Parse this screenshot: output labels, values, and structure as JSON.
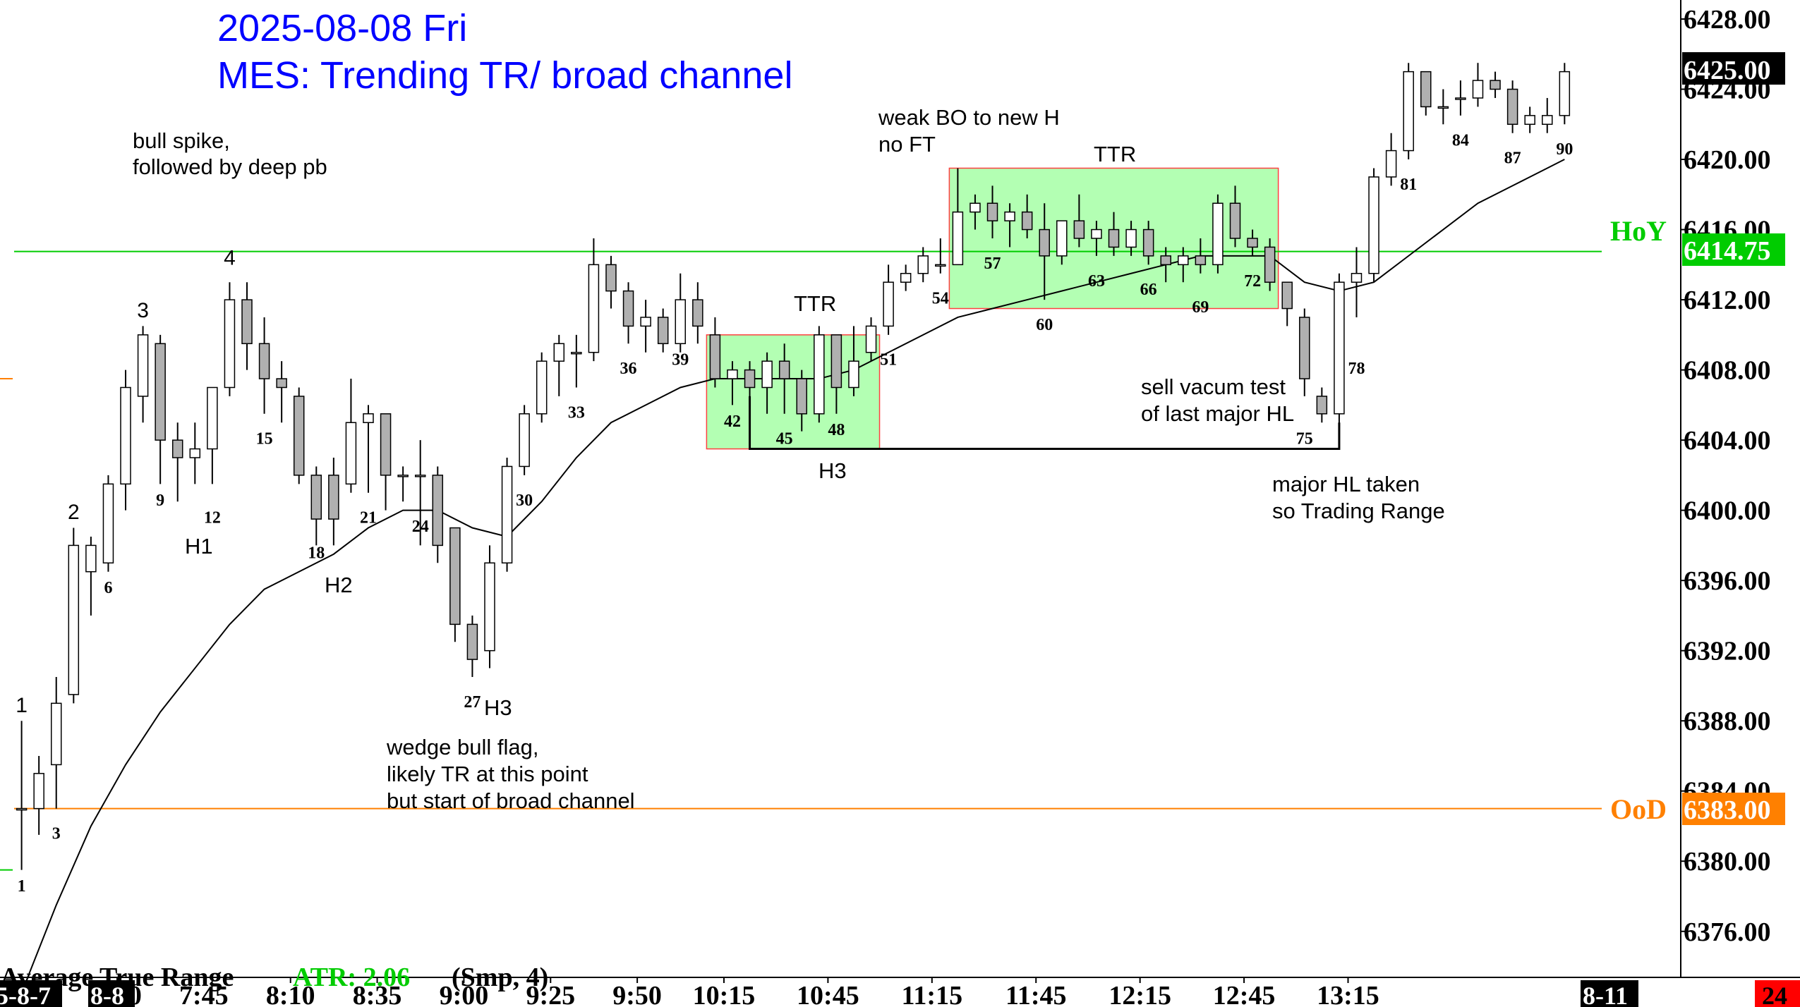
{
  "header": {
    "date": "2025-08-08 Fri",
    "subtitle": "MES: Trending TR/ broad channel"
  },
  "colors": {
    "title": "#0000ff",
    "hoy_line": "#00cc00",
    "ood_line": "#ff8000",
    "range_box_fill": "#b3ffb3",
    "range_box_border": "#ff4040",
    "bull_body": "#ffffff",
    "bear_body": "#b0b0b0",
    "ema": "#000000"
  },
  "annotations": {
    "bull_spike": "bull spike,",
    "bull_spike_2": "followed by deep pb",
    "wedge_1": "wedge bull flag,",
    "wedge_2": "likely TR at this point",
    "wedge_3": "but start of broad channel",
    "weak_bo_1": "weak BO to new H",
    "weak_bo_2": "no FT",
    "ttr_a": "TTR",
    "ttr_b": "TTR",
    "h3_a": "H3",
    "sell_vac_1": "sell vacum test",
    "sell_vac_2": "of last major HL",
    "major_hl_1": "major HL taken",
    "major_hl_2": "so Trading Range",
    "h1": "H1",
    "h2": "H2",
    "h3_b": "H3"
  },
  "price_labels": {
    "last": "6425.00",
    "hoy_tag": "HoY",
    "hoy_value": "6414.75",
    "ood_tag": "OoD",
    "ood_value": "6383.00"
  },
  "indicator": {
    "name": "Average True Range",
    "value": "ATR: 2.06",
    "params": "(Smp, 4)"
  },
  "time_axis": {
    "left_date": "5-8-7",
    "start_date": "8-8",
    "end_date": "8-11",
    "right_badge": "24"
  },
  "chart_data": {
    "type": "candlestick",
    "title": "MES: Trending TR/ broad channel",
    "ylim": [
      6373,
      6428.5
    ],
    "y_ticks": [
      6428.0,
      6424.0,
      6420.0,
      6416.0,
      6412.0,
      6408.0,
      6404.0,
      6400.0,
      6396.0,
      6392.0,
      6388.0,
      6384.0,
      6380.0,
      6376.0
    ],
    "x_ticks": [
      "7:20",
      "7:45",
      "8:10",
      "8:35",
      "9:00",
      "9:25",
      "9:50",
      "10:15",
      "10:45",
      "11:15",
      "11:45",
      "12:15",
      "12:45",
      "13:15"
    ],
    "levels": [
      {
        "name": "HoY",
        "value": 6414.75
      },
      {
        "name": "OoD",
        "value": 6383.0
      }
    ],
    "bars": [
      {
        "n": 1,
        "o": 6383.0,
        "h": 6388.0,
        "l": 6379.5,
        "c": 6383.0
      },
      {
        "n": 2,
        "o": 6383.0,
        "h": 6386.0,
        "l": 6381.5,
        "c": 6385.0
      },
      {
        "n": 3,
        "o": 6385.5,
        "h": 6390.5,
        "l": 6383.0,
        "c": 6389.0
      },
      {
        "n": 4,
        "o": 6389.5,
        "h": 6399.0,
        "l": 6389.0,
        "c": 6398.0
      },
      {
        "n": 5,
        "o": 6396.5,
        "h": 6398.5,
        "l": 6394.0,
        "c": 6398.0
      },
      {
        "n": 6,
        "o": 6397.0,
        "h": 6402.0,
        "l": 6396.5,
        "c": 6401.5
      },
      {
        "n": 7,
        "o": 6401.5,
        "h": 6408.0,
        "l": 6400.0,
        "c": 6407.0
      },
      {
        "n": 8,
        "o": 6406.5,
        "h": 6410.5,
        "l": 6405.0,
        "c": 6410.0
      },
      {
        "n": 9,
        "o": 6409.5,
        "h": 6410.0,
        "l": 6401.5,
        "c": 6404.0
      },
      {
        "n": 10,
        "o": 6404.0,
        "h": 6405.0,
        "l": 6400.5,
        "c": 6403.0
      },
      {
        "n": 11,
        "o": 6403.0,
        "h": 6405.0,
        "l": 6401.5,
        "c": 6403.5
      },
      {
        "n": 12,
        "o": 6403.5,
        "h": 6407.0,
        "l": 6401.5,
        "c": 6407.0
      },
      {
        "n": 13,
        "o": 6407.0,
        "h": 6413.0,
        "l": 6406.5,
        "c": 6412.0
      },
      {
        "n": 14,
        "o": 6412.0,
        "h": 6413.0,
        "l": 6408.0,
        "c": 6409.5
      },
      {
        "n": 15,
        "o": 6409.5,
        "h": 6411.0,
        "l": 6405.5,
        "c": 6407.5
      },
      {
        "n": 16,
        "o": 6407.5,
        "h": 6408.5,
        "l": 6405.0,
        "c": 6407.0
      },
      {
        "n": 17,
        "o": 6406.5,
        "h": 6407.0,
        "l": 6401.5,
        "c": 6402.0
      },
      {
        "n": 18,
        "o": 6402.0,
        "h": 6402.5,
        "l": 6398.0,
        "c": 6399.5
      },
      {
        "n": 19,
        "o": 6402.0,
        "h": 6403.0,
        "l": 6398.0,
        "c": 6399.5
      },
      {
        "n": 20,
        "o": 6401.5,
        "h": 6407.5,
        "l": 6401.0,
        "c": 6405.0
      },
      {
        "n": 21,
        "o": 6405.0,
        "h": 6406.0,
        "l": 6401.0,
        "c": 6405.5
      },
      {
        "n": 22,
        "o": 6405.5,
        "h": 6405.5,
        "l": 6400.0,
        "c": 6402.0
      },
      {
        "n": 23,
        "o": 6402.0,
        "h": 6402.5,
        "l": 6400.5,
        "c": 6402.0
      },
      {
        "n": 24,
        "o": 6402.0,
        "h": 6404.0,
        "l": 6398.0,
        "c": 6402.0
      },
      {
        "n": 25,
        "o": 6402.0,
        "h": 6402.5,
        "l": 6397.0,
        "c": 6398.0
      },
      {
        "n": 26,
        "o": 6399.0,
        "h": 6399.0,
        "l": 6392.5,
        "c": 6393.5
      },
      {
        "n": 27,
        "o": 6393.5,
        "h": 6394.0,
        "l": 6390.5,
        "c": 6391.5
      },
      {
        "n": 28,
        "o": 6392.0,
        "h": 6398.0,
        "l": 6391.0,
        "c": 6397.0
      },
      {
        "n": 29,
        "o": 6397.0,
        "h": 6403.0,
        "l": 6396.5,
        "c": 6402.5
      },
      {
        "n": 30,
        "o": 6402.5,
        "h": 6406.0,
        "l": 6402.0,
        "c": 6405.5
      },
      {
        "n": 31,
        "o": 6405.5,
        "h": 6409.0,
        "l": 6405.0,
        "c": 6408.5
      },
      {
        "n": 32,
        "o": 6408.5,
        "h": 6410.0,
        "l": 6406.5,
        "c": 6409.5
      },
      {
        "n": 33,
        "o": 6409.0,
        "h": 6410.0,
        "l": 6407.0,
        "c": 6409.0
      },
      {
        "n": 34,
        "o": 6409.0,
        "h": 6415.5,
        "l": 6408.5,
        "c": 6414.0
      },
      {
        "n": 35,
        "o": 6414.0,
        "h": 6414.5,
        "l": 6411.5,
        "c": 6412.5
      },
      {
        "n": 36,
        "o": 6412.5,
        "h": 6413.0,
        "l": 6409.5,
        "c": 6410.5
      },
      {
        "n": 37,
        "o": 6410.5,
        "h": 6412.0,
        "l": 6409.0,
        "c": 6411.0
      },
      {
        "n": 38,
        "o": 6411.0,
        "h": 6411.5,
        "l": 6409.0,
        "c": 6409.5
      },
      {
        "n": 39,
        "o": 6409.5,
        "h": 6413.5,
        "l": 6409.0,
        "c": 6412.0
      },
      {
        "n": 40,
        "o": 6412.0,
        "h": 6413.0,
        "l": 6409.5,
        "c": 6410.5
      },
      {
        "n": 41,
        "o": 6410.0,
        "h": 6411.0,
        "l": 6407.0,
        "c": 6407.5
      },
      {
        "n": 42,
        "o": 6407.5,
        "h": 6408.5,
        "l": 6406.0,
        "c": 6408.0
      },
      {
        "n": 43,
        "o": 6408.0,
        "h": 6408.5,
        "l": 6405.0,
        "c": 6407.0
      },
      {
        "n": 44,
        "o": 6407.0,
        "h": 6409.0,
        "l": 6405.5,
        "c": 6408.5
      },
      {
        "n": 45,
        "o": 6408.5,
        "h": 6409.5,
        "l": 6405.5,
        "c": 6407.5
      },
      {
        "n": 46,
        "o": 6407.5,
        "h": 6408.0,
        "l": 6404.5,
        "c": 6405.5
      },
      {
        "n": 47,
        "o": 6405.5,
        "h": 6410.5,
        "l": 6405.0,
        "c": 6410.0
      },
      {
        "n": 48,
        "o": 6410.0,
        "h": 6410.0,
        "l": 6405.5,
        "c": 6407.0
      },
      {
        "n": 49,
        "o": 6407.0,
        "h": 6410.5,
        "l": 6406.5,
        "c": 6408.5
      },
      {
        "n": 50,
        "o": 6409.0,
        "h": 6411.0,
        "l": 6408.5,
        "c": 6410.5
      },
      {
        "n": 51,
        "o": 6410.5,
        "h": 6414.0,
        "l": 6410.0,
        "c": 6413.0
      },
      {
        "n": 52,
        "o": 6413.0,
        "h": 6414.0,
        "l": 6412.5,
        "c": 6413.5
      },
      {
        "n": 53,
        "o": 6413.5,
        "h": 6415.0,
        "l": 6413.0,
        "c": 6414.5
      },
      {
        "n": 54,
        "o": 6414.0,
        "h": 6415.5,
        "l": 6413.5,
        "c": 6414.0
      },
      {
        "n": 55,
        "o": 6414.0,
        "h": 6419.5,
        "l": 6414.0,
        "c": 6417.0
      },
      {
        "n": 56,
        "o": 6417.0,
        "h": 6418.0,
        "l": 6416.0,
        "c": 6417.5
      },
      {
        "n": 57,
        "o": 6417.5,
        "h": 6418.5,
        "l": 6415.5,
        "c": 6416.5
      },
      {
        "n": 58,
        "o": 6416.5,
        "h": 6417.5,
        "l": 6415.0,
        "c": 6417.0
      },
      {
        "n": 59,
        "o": 6417.0,
        "h": 6418.0,
        "l": 6415.5,
        "c": 6416.0
      },
      {
        "n": 60,
        "o": 6416.0,
        "h": 6417.5,
        "l": 6412.0,
        "c": 6414.5
      },
      {
        "n": 61,
        "o": 6414.5,
        "h": 6416.5,
        "l": 6414.0,
        "c": 6416.5
      },
      {
        "n": 62,
        "o": 6416.5,
        "h": 6418.0,
        "l": 6415.0,
        "c": 6415.5
      },
      {
        "n": 63,
        "o": 6415.5,
        "h": 6416.5,
        "l": 6414.5,
        "c": 6416.0
      },
      {
        "n": 64,
        "o": 6416.0,
        "h": 6417.0,
        "l": 6414.5,
        "c": 6415.0
      },
      {
        "n": 65,
        "o": 6415.0,
        "h": 6416.5,
        "l": 6414.5,
        "c": 6416.0
      },
      {
        "n": 66,
        "o": 6416.0,
        "h": 6416.5,
        "l": 6414.0,
        "c": 6414.5
      },
      {
        "n": 67,
        "o": 6414.5,
        "h": 6415.0,
        "l": 6413.0,
        "c": 6414.0
      },
      {
        "n": 68,
        "o": 6414.0,
        "h": 6415.0,
        "l": 6413.0,
        "c": 6414.5
      },
      {
        "n": 69,
        "o": 6414.5,
        "h": 6415.5,
        "l": 6413.5,
        "c": 6414.0
      },
      {
        "n": 70,
        "o": 6414.0,
        "h": 6418.0,
        "l": 6413.5,
        "c": 6417.5
      },
      {
        "n": 71,
        "o": 6417.5,
        "h": 6418.5,
        "l": 6415.0,
        "c": 6415.5
      },
      {
        "n": 72,
        "o": 6415.5,
        "h": 6416.0,
        "l": 6414.5,
        "c": 6415.0
      },
      {
        "n": 73,
        "o": 6415.0,
        "h": 6415.5,
        "l": 6412.5,
        "c": 6413.0
      },
      {
        "n": 74,
        "o": 6413.0,
        "h": 6413.0,
        "l": 6410.5,
        "c": 6411.5
      },
      {
        "n": 75,
        "o": 6411.0,
        "h": 6411.5,
        "l": 6406.5,
        "c": 6407.5
      },
      {
        "n": 76,
        "o": 6406.5,
        "h": 6407.0,
        "l": 6405.0,
        "c": 6405.5
      },
      {
        "n": 77,
        "o": 6405.5,
        "h": 6413.5,
        "l": 6403.5,
        "c": 6413.0
      },
      {
        "n": 78,
        "o": 6413.0,
        "h": 6415.0,
        "l": 6411.0,
        "c": 6413.5
      },
      {
        "n": 79,
        "o": 6413.5,
        "h": 6419.5,
        "l": 6413.0,
        "c": 6419.0
      },
      {
        "n": 80,
        "o": 6419.0,
        "h": 6421.5,
        "l": 6418.5,
        "c": 6420.5
      },
      {
        "n": 81,
        "o": 6420.5,
        "h": 6425.5,
        "l": 6420.0,
        "c": 6425.0
      },
      {
        "n": 82,
        "o": 6425.0,
        "h": 6425.0,
        "l": 6422.5,
        "c": 6423.0
      },
      {
        "n": 83,
        "o": 6423.0,
        "h": 6424.0,
        "l": 6422.0,
        "c": 6423.0
      },
      {
        "n": 84,
        "o": 6423.5,
        "h": 6424.5,
        "l": 6422.5,
        "c": 6423.5
      },
      {
        "n": 85,
        "o": 6423.5,
        "h": 6425.5,
        "l": 6423.0,
        "c": 6424.5
      },
      {
        "n": 86,
        "o": 6424.5,
        "h": 6425.0,
        "l": 6423.5,
        "c": 6424.0
      },
      {
        "n": 87,
        "o": 6424.0,
        "h": 6424.5,
        "l": 6421.5,
        "c": 6422.0
      },
      {
        "n": 88,
        "o": 6422.0,
        "h": 6423.0,
        "l": 6421.5,
        "c": 6422.5
      },
      {
        "n": 89,
        "o": 6422.0,
        "h": 6423.5,
        "l": 6421.5,
        "c": 6422.5
      },
      {
        "n": 90,
        "o": 6422.5,
        "h": 6425.5,
        "l": 6422.0,
        "c": 6425.0
      }
    ],
    "ema": [
      [
        1,
        6372.5
      ],
      [
        3,
        6377.5
      ],
      [
        5,
        6382.0
      ],
      [
        7,
        6385.5
      ],
      [
        9,
        6388.5
      ],
      [
        11,
        6391.0
      ],
      [
        13,
        6393.5
      ],
      [
        15,
        6395.5
      ],
      [
        17,
        6396.5
      ],
      [
        19,
        6397.5
      ],
      [
        21,
        6399.0
      ],
      [
        23,
        6400.0
      ],
      [
        25,
        6400.0
      ],
      [
        27,
        6399.0
      ],
      [
        29,
        6398.5
      ],
      [
        31,
        6400.5
      ],
      [
        33,
        6403.0
      ],
      [
        35,
        6405.0
      ],
      [
        37,
        6406.0
      ],
      [
        39,
        6407.0
      ],
      [
        41,
        6407.5
      ],
      [
        43,
        6407.5
      ],
      [
        45,
        6407.5
      ],
      [
        47,
        6407.5
      ],
      [
        49,
        6408.0
      ],
      [
        51,
        6409.0
      ],
      [
        53,
        6410.0
      ],
      [
        55,
        6411.0
      ],
      [
        57,
        6411.5
      ],
      [
        59,
        6412.0
      ],
      [
        61,
        6412.5
      ],
      [
        63,
        6413.0
      ],
      [
        65,
        6413.5
      ],
      [
        67,
        6414.0
      ],
      [
        69,
        6414.5
      ],
      [
        71,
        6414.5
      ],
      [
        73,
        6414.5
      ],
      [
        75,
        6413.0
      ],
      [
        77,
        6412.5
      ],
      [
        79,
        6413.0
      ],
      [
        81,
        6414.5
      ],
      [
        83,
        6416.0
      ],
      [
        85,
        6417.5
      ],
      [
        87,
        6418.5
      ],
      [
        89,
        6419.5
      ],
      [
        90,
        6420.0
      ]
    ],
    "range_boxes": [
      {
        "label": "TTR",
        "from_bar": 41,
        "to_bar": 50,
        "top": 6410.0,
        "bottom": 6403.5
      },
      {
        "label": "TTR",
        "from_bar": 55,
        "to_bar": 73,
        "top": 6419.5,
        "bottom": 6411.5
      }
    ],
    "bar_numbers": [
      {
        "text": "1",
        "bar": 1,
        "y": 6379.0,
        "pos": "below"
      },
      {
        "text": "3",
        "bar": 3,
        "y": 6382.0,
        "pos": "below"
      },
      {
        "text": "6",
        "bar": 6,
        "y": 6396.0,
        "pos": "below"
      },
      {
        "text": "9",
        "bar": 9,
        "y": 6401.0,
        "pos": "below"
      },
      {
        "text": "12",
        "bar": 12,
        "y": 6400.0,
        "pos": "below"
      },
      {
        "text": "15",
        "bar": 15,
        "y": 6404.5,
        "pos": "below"
      },
      {
        "text": "18",
        "bar": 18,
        "y": 6398.0,
        "pos": "below"
      },
      {
        "text": "21",
        "bar": 21,
        "y": 6400.0,
        "pos": "below"
      },
      {
        "text": "24",
        "bar": 24,
        "y": 6399.5,
        "pos": "below"
      },
      {
        "text": "27",
        "bar": 27,
        "y": 6389.5,
        "pos": "below"
      },
      {
        "text": "30",
        "bar": 30,
        "y": 6401.0,
        "pos": "below"
      },
      {
        "text": "33",
        "bar": 33,
        "y": 6406.0,
        "pos": "below"
      },
      {
        "text": "36",
        "bar": 36,
        "y": 6408.5,
        "pos": "below"
      },
      {
        "text": "39",
        "bar": 39,
        "y": 6409.0,
        "pos": "below"
      },
      {
        "text": "42",
        "bar": 42,
        "y": 6405.5,
        "pos": "below"
      },
      {
        "text": "45",
        "bar": 45,
        "y": 6404.5,
        "pos": "below"
      },
      {
        "text": "48",
        "bar": 48,
        "y": 6405.0,
        "pos": "below"
      },
      {
        "text": "51",
        "bar": 51,
        "y": 6409.0,
        "pos": "below"
      },
      {
        "text": "54",
        "bar": 54,
        "y": 6412.5,
        "pos": "below"
      },
      {
        "text": "57",
        "bar": 57,
        "y": 6414.5,
        "pos": "below"
      },
      {
        "text": "60",
        "bar": 60,
        "y": 6411.0,
        "pos": "below"
      },
      {
        "text": "63",
        "bar": 63,
        "y": 6413.5,
        "pos": "below"
      },
      {
        "text": "66",
        "bar": 66,
        "y": 6413.0,
        "pos": "below"
      },
      {
        "text": "69",
        "bar": 69,
        "y": 6412.0,
        "pos": "below"
      },
      {
        "text": "72",
        "bar": 72,
        "y": 6413.5,
        "pos": "below"
      },
      {
        "text": "75",
        "bar": 75,
        "y": 6404.5,
        "pos": "below"
      },
      {
        "text": "78",
        "bar": 78,
        "y": 6408.5,
        "pos": "below"
      },
      {
        "text": "81",
        "bar": 81,
        "y": 6419.0,
        "pos": "below"
      },
      {
        "text": "84",
        "bar": 84,
        "y": 6421.5,
        "pos": "below"
      },
      {
        "text": "87",
        "bar": 87,
        "y": 6420.5,
        "pos": "below"
      },
      {
        "text": "90",
        "bar": 90,
        "y": 6421.0,
        "pos": "below"
      },
      {
        "text": "1",
        "bar": 1,
        "y": 6388.5,
        "pos": "above"
      },
      {
        "text": "2",
        "bar": 4,
        "y": 6399.5,
        "pos": "above"
      },
      {
        "text": "3",
        "bar": 8,
        "y": 6411.0,
        "pos": "above"
      },
      {
        "text": "4",
        "bar": 13,
        "y": 6414.0,
        "pos": "above"
      }
    ]
  }
}
